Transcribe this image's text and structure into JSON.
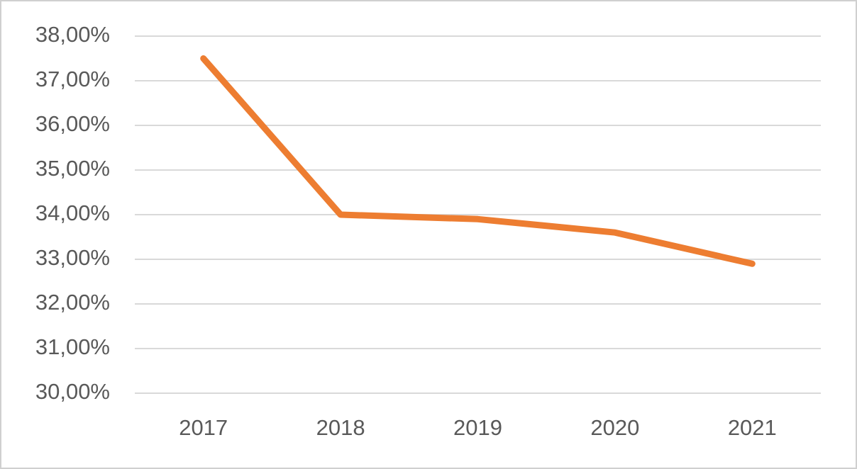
{
  "chart_data": {
    "type": "line",
    "categories": [
      "2017",
      "2018",
      "2019",
      "2020",
      "2021"
    ],
    "series": [
      {
        "color": "#ed7d31",
        "values": [
          37.5,
          34.0,
          33.9,
          33.6,
          32.9
        ]
      }
    ],
    "ylim": [
      30,
      38
    ],
    "yticks": [
      {
        "value": 30,
        "label": "30,00%"
      },
      {
        "value": 31,
        "label": "31,00%"
      },
      {
        "value": 32,
        "label": "32,00%"
      },
      {
        "value": 33,
        "label": "33,00%"
      },
      {
        "value": 34,
        "label": "34,00%"
      },
      {
        "value": 35,
        "label": "35,00%"
      },
      {
        "value": 36,
        "label": "36,00%"
      },
      {
        "value": 37,
        "label": "37,00%"
      },
      {
        "value": 38,
        "label": "38,00%"
      }
    ],
    "grid": true
  }
}
